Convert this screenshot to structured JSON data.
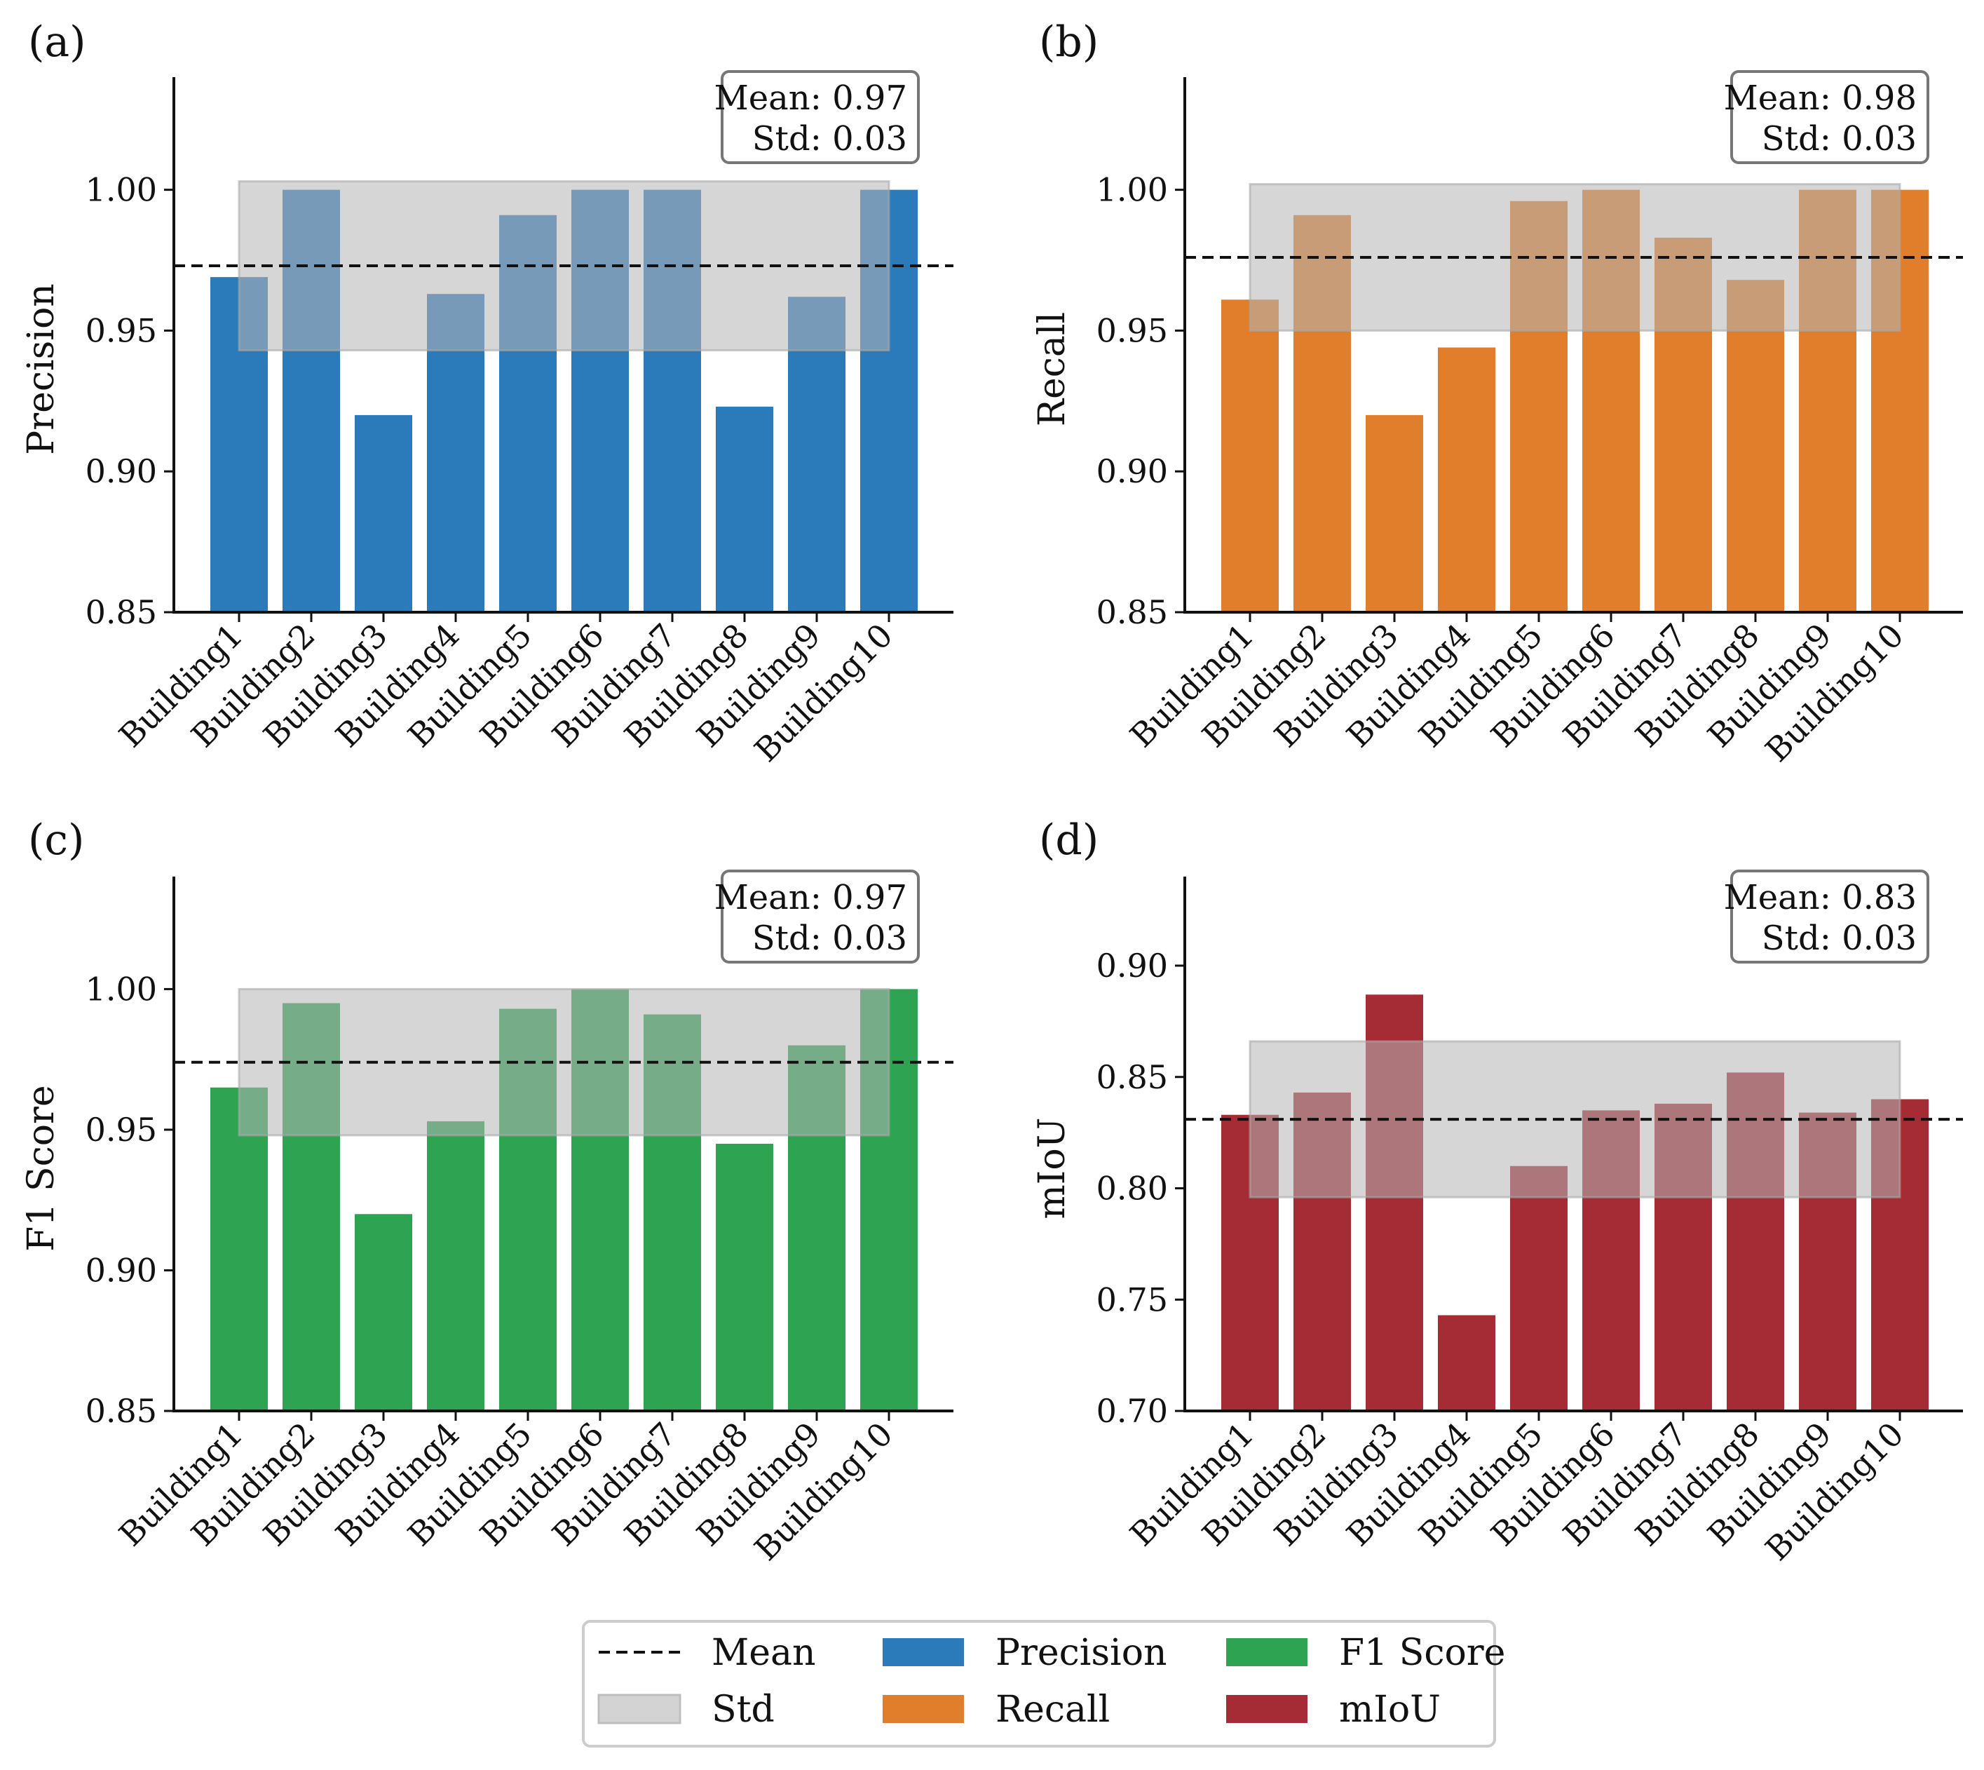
{
  "chart_data": [
    {
      "type": "bar",
      "panel_label": "(a)",
      "ylabel": "Precision",
      "categories": [
        "Building1",
        "Building2",
        "Building3",
        "Building4",
        "Building5",
        "Building6",
        "Building7",
        "Building8",
        "Building9",
        "Building10"
      ],
      "values": [
        0.969,
        1.0,
        0.92,
        0.963,
        0.991,
        1.0,
        1.0,
        0.923,
        0.962,
        1.0
      ],
      "mean": 0.973,
      "std": 0.03,
      "mean_label": "Mean: 0.97",
      "std_label": "Std: 0.03",
      "ylim": [
        0.85,
        1.04
      ],
      "yticks": [
        0.85,
        0.9,
        0.95,
        1.0
      ],
      "ytick_labels": [
        "0.85",
        "0.90",
        "0.95",
        "1.00"
      ],
      "color": "#2b7bba"
    },
    {
      "type": "bar",
      "panel_label": "(b)",
      "ylabel": "Recall",
      "categories": [
        "Building1",
        "Building2",
        "Building3",
        "Building4",
        "Building5",
        "Building6",
        "Building7",
        "Building8",
        "Building9",
        "Building10"
      ],
      "values": [
        0.961,
        0.991,
        0.92,
        0.944,
        0.996,
        1.0,
        0.983,
        0.968,
        1.0,
        1.0
      ],
      "mean": 0.976,
      "std": 0.026,
      "mean_label": "Mean: 0.98",
      "std_label": "Std: 0.03",
      "ylim": [
        0.85,
        1.04
      ],
      "yticks": [
        0.85,
        0.9,
        0.95,
        1.0
      ],
      "ytick_labels": [
        "0.85",
        "0.90",
        "0.95",
        "1.00"
      ],
      "color": "#e07e2c"
    },
    {
      "type": "bar",
      "panel_label": "(c)",
      "ylabel": "F1 Score",
      "categories": [
        "Building1",
        "Building2",
        "Building3",
        "Building4",
        "Building5",
        "Building6",
        "Building7",
        "Building8",
        "Building9",
        "Building10"
      ],
      "values": [
        0.965,
        0.995,
        0.92,
        0.953,
        0.993,
        1.0,
        0.991,
        0.945,
        0.98,
        1.0
      ],
      "mean": 0.974,
      "std": 0.026,
      "mean_label": "Mean: 0.97",
      "std_label": "Std: 0.03",
      "ylim": [
        0.85,
        1.04
      ],
      "yticks": [
        0.85,
        0.9,
        0.95,
        1.0
      ],
      "ytick_labels": [
        "0.85",
        "0.90",
        "0.95",
        "1.00"
      ],
      "color": "#2ea352"
    },
    {
      "type": "bar",
      "panel_label": "(d)",
      "ylabel": "mIoU",
      "categories": [
        "Building1",
        "Building2",
        "Building3",
        "Building4",
        "Building5",
        "Building6",
        "Building7",
        "Building8",
        "Building9",
        "Building10"
      ],
      "values": [
        0.833,
        0.843,
        0.887,
        0.743,
        0.81,
        0.835,
        0.838,
        0.852,
        0.834,
        0.84
      ],
      "mean": 0.831,
      "std": 0.035,
      "mean_label": "Mean: 0.83",
      "std_label": "Std: 0.03",
      "ylim": [
        0.7,
        0.94
      ],
      "yticks": [
        0.7,
        0.75,
        0.8,
        0.85,
        0.9
      ],
      "ytick_labels": [
        "0.70",
        "0.75",
        "0.80",
        "0.85",
        "0.90"
      ],
      "color": "#a52c34"
    }
  ],
  "legend": {
    "items": [
      {
        "label": "Mean",
        "kind": "dashed-line",
        "color": "#111111"
      },
      {
        "label": "Precision",
        "kind": "patch",
        "color": "#2b7bba"
      },
      {
        "label": "F1 Score",
        "kind": "patch",
        "color": "#2ea352"
      },
      {
        "label": "Std",
        "kind": "patch",
        "color": "#d3d3d3"
      },
      {
        "label": "Recall",
        "kind": "patch",
        "color": "#e07e2c"
      },
      {
        "label": "mIoU",
        "kind": "patch",
        "color": "#a52c34"
      }
    ]
  }
}
